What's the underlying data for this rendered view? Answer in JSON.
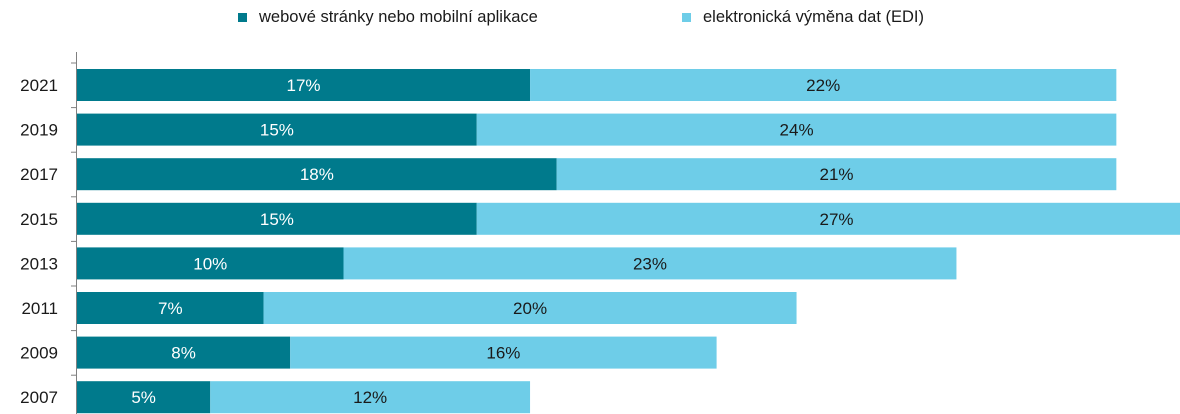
{
  "chart_data": {
    "type": "bar",
    "orientation": "horizontal",
    "stacked": true,
    "categories": [
      "2021",
      "2019",
      "2017",
      "2015",
      "2013",
      "2011",
      "2009",
      "2007"
    ],
    "series": [
      {
        "name": "webové stránky nebo mobilní aplikace",
        "values": [
          17,
          15,
          18,
          15,
          10,
          7,
          8,
          5
        ],
        "labels": [
          "17%",
          "15%",
          "18%",
          "15%",
          "10%",
          "7%",
          "8%",
          "5%"
        ],
        "color": "#007A8C",
        "label_color": "#ffffff"
      },
      {
        "name": "elektronická výměna dat (EDI)",
        "values": [
          22,
          24,
          21,
          27,
          23,
          20,
          16,
          12
        ],
        "labels": [
          "22%",
          "24%",
          "21%",
          "27%",
          "23%",
          "20%",
          "16%",
          "12%"
        ],
        "color": "#6ECDE8",
        "label_color": "#1a1a1a"
      }
    ],
    "unit": "%",
    "legend_position": "top",
    "grid": false
  }
}
